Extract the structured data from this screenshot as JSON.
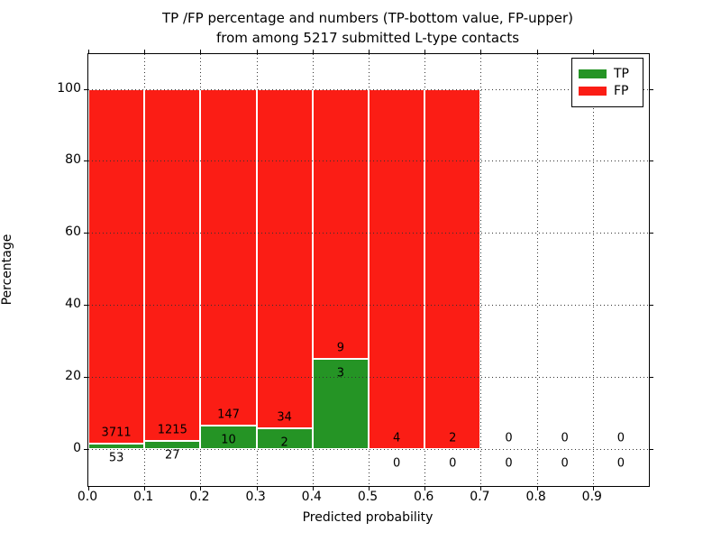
{
  "figure": {
    "title_line1": "TP /FP percentage and numbers (TP-bottom value, FP-upper)",
    "title_line2": "from among 5217 submitted L-type contacts",
    "xlabel": "Predicted probability",
    "ylabel": "Percentage"
  },
  "chart_data": {
    "type": "bar",
    "subtype": "stacked-percentage",
    "title": "TP /FP percentage and numbers (TP-bottom value, FP-upper) from among 5217 submitted L-type contacts",
    "xlabel": "Predicted probability",
    "ylabel": "Percentage",
    "total_submitted_contacts": 5217,
    "bin_width": 0.1,
    "categories": [
      "0.0-0.1",
      "0.1-0.2",
      "0.2-0.3",
      "0.3-0.4",
      "0.4-0.5",
      "0.5-0.6",
      "0.6-0.7",
      "0.7-0.8",
      "0.8-0.9",
      "0.9-1.0"
    ],
    "series": [
      {
        "name": "TP",
        "color": "#259425",
        "counts": [
          53,
          27,
          10,
          2,
          3,
          0,
          0,
          0,
          0,
          0
        ]
      },
      {
        "name": "FP",
        "color": "#fb1d15",
        "counts": [
          3711,
          1215,
          147,
          34,
          9,
          4,
          2,
          0,
          0,
          0
        ]
      }
    ],
    "tp_percent_per_bin": [
      1.41,
      2.17,
      6.37,
      5.56,
      25.0,
      0.0,
      0.0,
      null,
      null,
      null
    ],
    "bars_total_percent": 100,
    "xticks": [
      "0.0",
      "0.1",
      "0.2",
      "0.3",
      "0.4",
      "0.5",
      "0.6",
      "0.7",
      "0.8",
      "0.9"
    ],
    "yticks": [
      "0",
      "20",
      "40",
      "60",
      "80",
      "100"
    ],
    "xlim": [
      0.0,
      1.0
    ],
    "ylim": [
      -10.4,
      109.7
    ],
    "grid": "dotted",
    "legend_position": "upper right",
    "legend_items": [
      "TP",
      "FP"
    ]
  },
  "colors": {
    "tp": "#259425",
    "fp": "#fb1d15",
    "grid": "#333333",
    "frame": "#000000",
    "background": "#ffffff",
    "bar_edge": "#ffffff"
  }
}
